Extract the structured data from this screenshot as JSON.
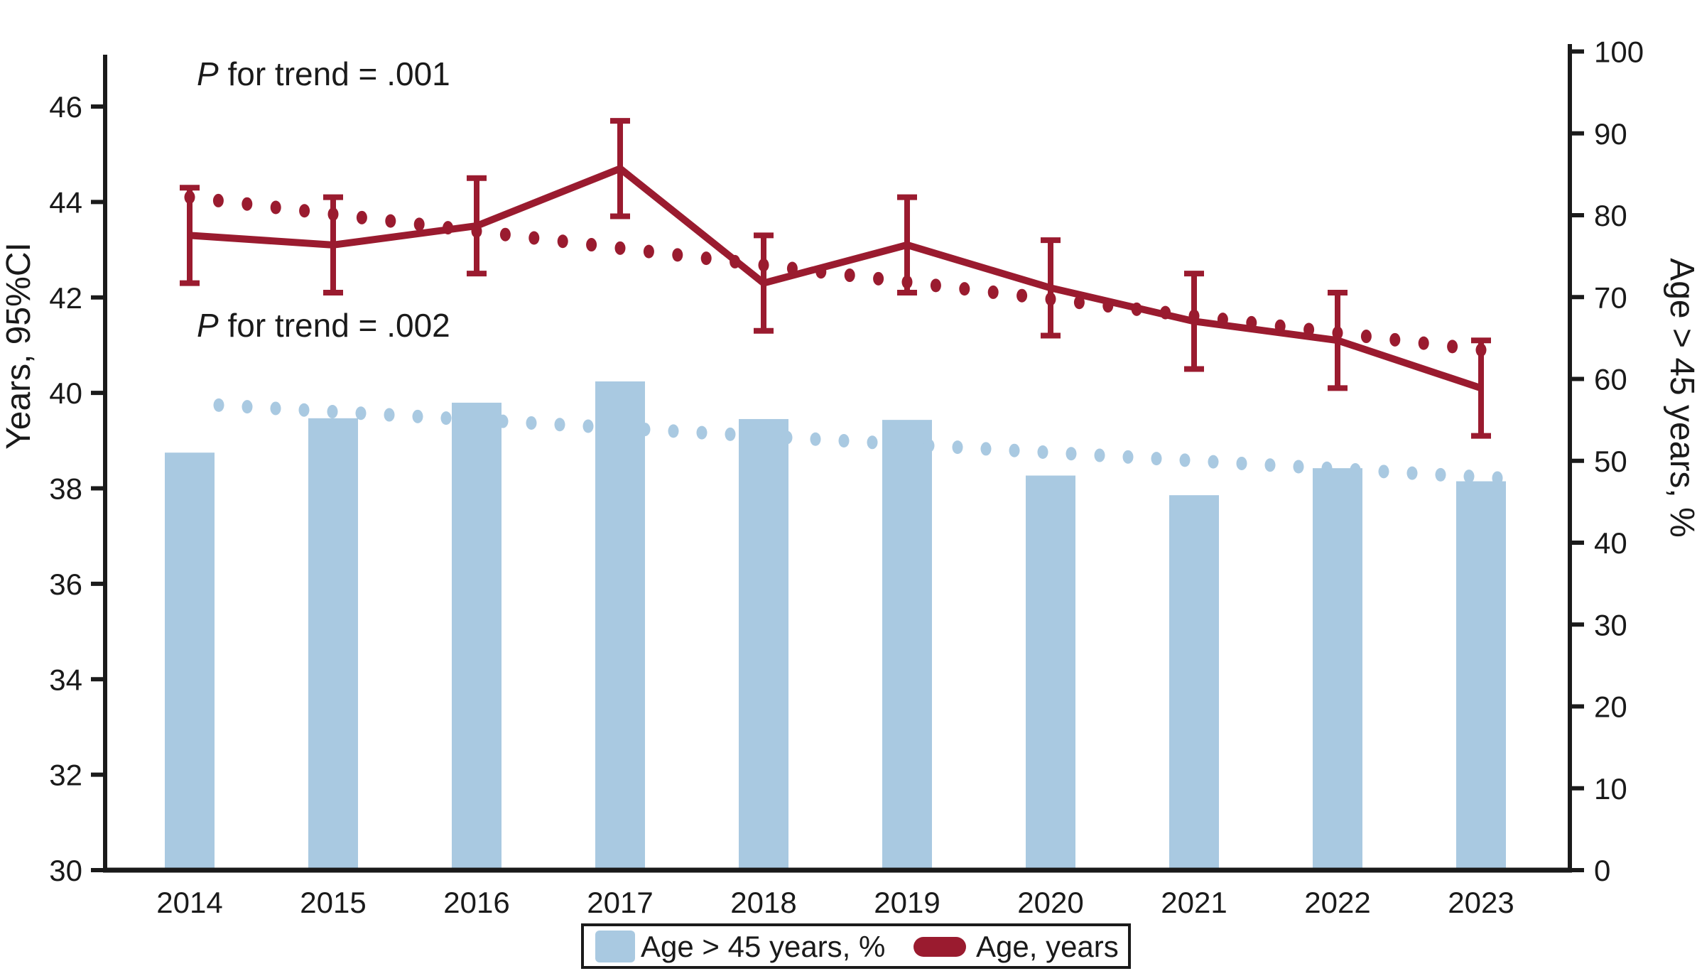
{
  "colors": {
    "bar_blue": "#a9c9e1",
    "line_red": "#9a1b2f",
    "axis_ink": "#1a1a1a",
    "background": "#ffffff"
  },
  "annotations": {
    "line_trend": {
      "p": "P",
      "rest": " for trend = .001"
    },
    "bar_trend": {
      "p": "P",
      "rest": " for trend = .002"
    }
  },
  "legend": {
    "items": [
      {
        "label": "Age > 45 years, %",
        "marker": "blue-square"
      },
      {
        "label": "Age, years",
        "marker": "red-line"
      }
    ]
  },
  "chart_data": {
    "type": "bar",
    "subtype": "combo-bar-line-dual-axis",
    "categories": [
      2014,
      2015,
      2016,
      2017,
      2018,
      2019,
      2020,
      2021,
      2022,
      2023
    ],
    "series": [
      {
        "name": "Age > 45 years, %",
        "type": "bar",
        "axis": "right",
        "color": "#a9c9e1",
        "values": [
          51.0,
          55.2,
          57.1,
          59.7,
          55.1,
          55.0,
          48.2,
          45.8,
          49.1,
          47.5
        ]
      },
      {
        "name": "Age, years",
        "type": "line",
        "axis": "left",
        "color": "#9a1b2f",
        "values": [
          43.3,
          43.1,
          43.5,
          44.7,
          42.3,
          43.1,
          42.2,
          41.5,
          41.1,
          40.1
        ],
        "ci_upper": [
          44.3,
          44.1,
          44.5,
          45.7,
          43.3,
          44.1,
          43.2,
          42.5,
          42.1,
          41.1
        ],
        "ci_lower": [
          42.3,
          42.1,
          42.5,
          43.7,
          41.3,
          42.1,
          41.2,
          40.5,
          40.1,
          39.1
        ]
      },
      {
        "name": "Linear trend of Age, years (dotted)",
        "type": "dotted-trend",
        "axis": "left",
        "color": "#9a1b2f",
        "start_value": 44.1,
        "end_value": 40.9
      },
      {
        "name": "Linear trend of Age > 45 years, % (dotted)",
        "type": "dotted-trend",
        "axis": "right",
        "color": "#a9c9e1",
        "start_value": 56.8,
        "end_value": 47.9
      }
    ],
    "left_axis": {
      "label": "Years, 95%CI",
      "min": 30,
      "max": 46,
      "ticks": [
        46,
        44,
        42,
        40,
        38,
        36,
        34,
        32,
        30
      ]
    },
    "right_axis": {
      "label": "Age > 45 years, %",
      "min": 0,
      "max": 100,
      "ticks": [
        100,
        90,
        80,
        70,
        60,
        50,
        40,
        30,
        20,
        10,
        0
      ]
    },
    "grid": false,
    "legend_position": "bottom-center",
    "title": ""
  }
}
